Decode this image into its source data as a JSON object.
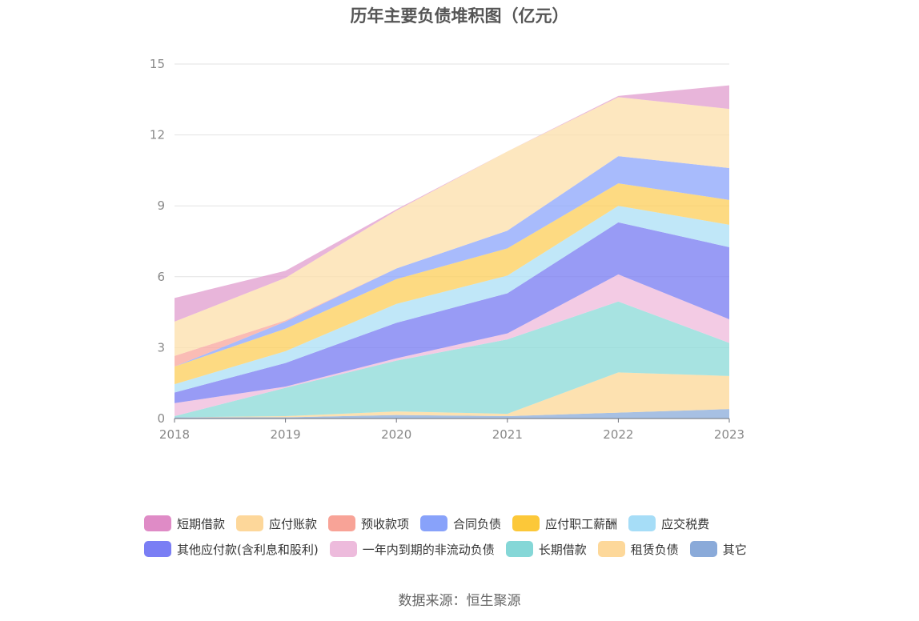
{
  "title": "历年主要负债堆积图（亿元）",
  "source": "数据来源：恒生聚源",
  "chart_data": {
    "type": "area",
    "stacked": true,
    "x": [
      "2018",
      "2019",
      "2020",
      "2021",
      "2022",
      "2023"
    ],
    "ylim": [
      0,
      15
    ],
    "yticks": [
      0,
      3,
      6,
      9,
      12,
      15
    ],
    "grid": true,
    "legend_position": "bottom",
    "series": [
      {
        "name": "其它",
        "color": "#8eaedb",
        "values": [
          0.05,
          0.05,
          0.15,
          0.1,
          0.25,
          0.4
        ]
      },
      {
        "name": "租赁负债",
        "color": "#fdd89a",
        "values": [
          0.0,
          0.05,
          0.15,
          0.1,
          1.7,
          1.4
        ]
      },
      {
        "name": "长期借款",
        "color": "#8edbd9",
        "values": [
          0.05,
          1.2,
          2.15,
          3.15,
          3.0,
          1.4
        ]
      },
      {
        "name": "一年内到期的非流动负债",
        "color": "#efbddd",
        "values": [
          0.55,
          0.05,
          0.1,
          0.25,
          1.15,
          1.0
        ]
      },
      {
        "name": "其他应付款(含利息和股利)",
        "color": "#7b7ff2",
        "values": [
          0.45,
          1.0,
          1.5,
          1.7,
          2.2,
          3.05
        ]
      },
      {
        "name": "应交税费",
        "color": "#aee0f6",
        "values": [
          0.35,
          0.5,
          0.8,
          0.75,
          0.7,
          0.95
        ]
      },
      {
        "name": "应付职工薪酬",
        "color": "#fdd05f",
        "values": [
          0.75,
          0.95,
          1.05,
          1.15,
          0.95,
          1.05
        ]
      },
      {
        "name": "合同负债",
        "color": "#8fa8fb",
        "values": [
          0.0,
          0.3,
          0.45,
          0.75,
          1.15,
          1.35
        ]
      },
      {
        "name": "预收款项",
        "color": "#f9a9a0",
        "values": [
          0.45,
          0.05,
          0.0,
          0.0,
          0.0,
          0.0
        ]
      },
      {
        "name": "应付账款",
        "color": "#fde0ad",
        "values": [
          1.45,
          1.8,
          2.45,
          3.35,
          2.5,
          2.5
        ]
      },
      {
        "name": "短期借款",
        "color": "#e2a0cf",
        "values": [
          1.0,
          0.3,
          0.05,
          0.0,
          0.05,
          1.0
        ]
      }
    ]
  },
  "legend": {
    "rows": [
      [
        {
          "name": "短期借款",
          "color": "#df8bc6"
        },
        {
          "name": "应付账款",
          "color": "#fdd79a"
        },
        {
          "name": "预收款项",
          "color": "#f8a397"
        },
        {
          "name": "合同负债",
          "color": "#88a2fa"
        },
        {
          "name": "应付职工薪酬",
          "color": "#fcc839"
        },
        {
          "name": "应交税费",
          "color": "#a6ddf7"
        }
      ],
      [
        {
          "name": "其他应付款(含利息和股利)",
          "color": "#7a7ef4"
        },
        {
          "name": "一年内到期的非流动负债",
          "color": "#edbbdc"
        },
        {
          "name": "长期借款",
          "color": "#85d7d7"
        },
        {
          "name": "租赁负债",
          "color": "#fdd89a"
        },
        {
          "name": "其它",
          "color": "#8aaad9"
        }
      ]
    ]
  }
}
